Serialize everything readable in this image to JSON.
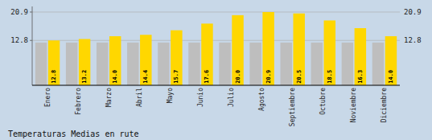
{
  "chart_data": {
    "type": "bar",
    "title": "Temperaturas Medias en rute",
    "categories": [
      "Enero",
      "Febrero",
      "Marzo",
      "Abril",
      "Mayo",
      "Junio",
      "Julio",
      "Agosto",
      "Septiembre",
      "Octubre",
      "Noviembre",
      "Diciembre"
    ],
    "series": [
      {
        "color": "#BEBEBE",
        "values": [
          12.2,
          12.2,
          12.2,
          12.2,
          12.2,
          12.2,
          12.2,
          12.2,
          12.2,
          12.2,
          12.2,
          12.2
        ]
      },
      {
        "color": "#FFD700",
        "values": [
          12.8,
          13.2,
          14.0,
          14.4,
          15.7,
          17.6,
          20.0,
          20.9,
          20.5,
          18.5,
          16.3,
          14.0
        ],
        "value_labels": [
          "12.8",
          "13.2",
          "14.0",
          "14.4",
          "15.7",
          "17.6",
          "20.0",
          "20.9",
          "20.5",
          "18.5",
          "16.3",
          "14.0"
        ],
        "data_labels": true
      }
    ],
    "ylim": [
      0,
      22.5
    ],
    "yticks": [
      12.8,
      20.9
    ],
    "y2lim": [
      0,
      22.5
    ],
    "y2ticks": [
      12.8,
      20.9
    ],
    "grid": true
  }
}
